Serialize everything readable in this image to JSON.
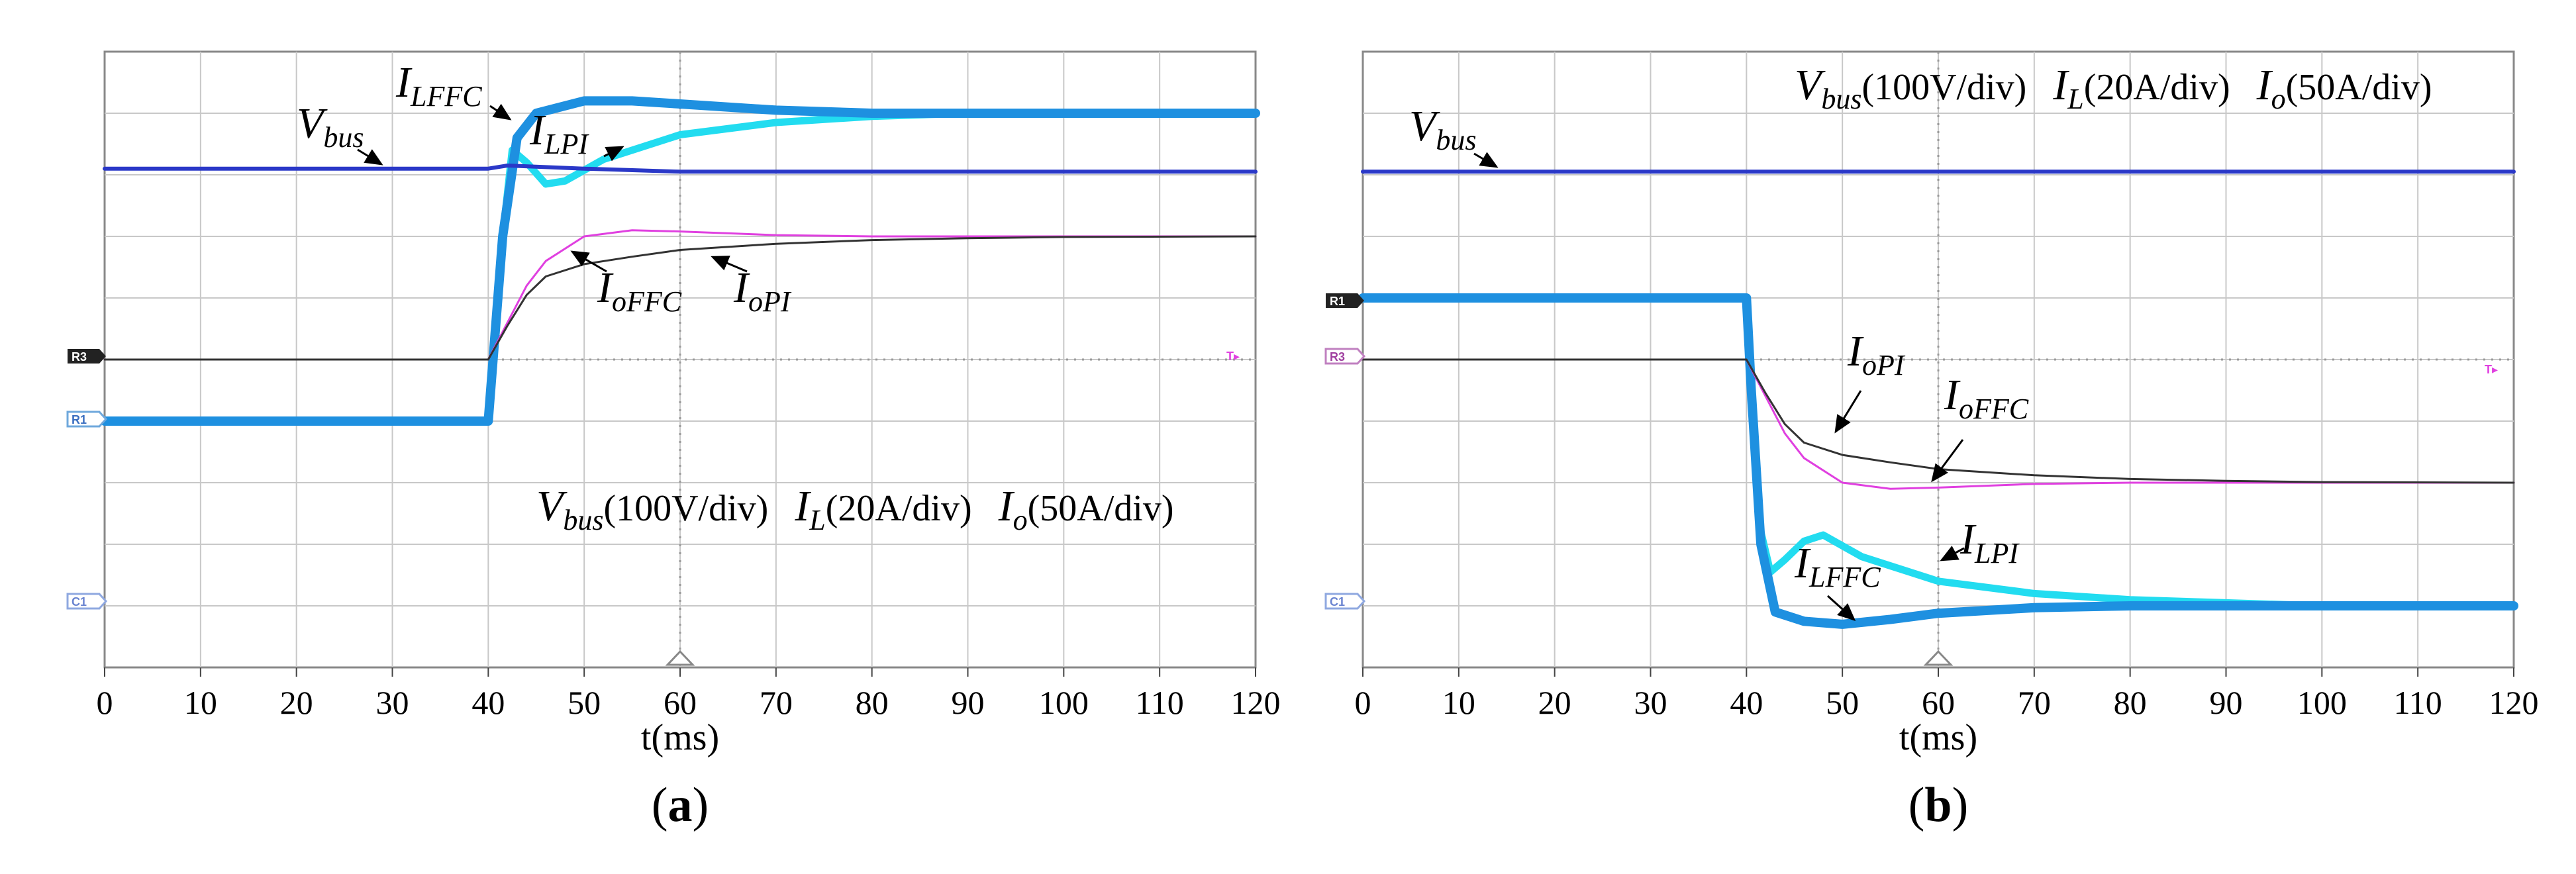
{
  "colors": {
    "vbus": "#2a38c8",
    "il_ffc": "#1e90e0",
    "il_pi": "#22dcf0",
    "io_ffc": "#e040e0",
    "io_pi": "#333333",
    "grid": "#c8c8c8",
    "frame": "#888888"
  },
  "panels": [
    {
      "label_open": "(",
      "label": "a",
      "label_close": ")",
      "xlabel": "t(ms)",
      "ticks": [
        "0",
        "10",
        "20",
        "30",
        "40",
        "50",
        "60",
        "70",
        "80",
        "90",
        "100",
        "110",
        "120"
      ],
      "legend": {
        "v": "V",
        "v_sub": "bus",
        "v_scale": "(100V/div)",
        "i": "I",
        "i_sub": "L",
        "i_scale": "(20A/div)",
        "o": "I",
        "o_sub": "o",
        "o_scale": "(50A/div)"
      },
      "annotations": {
        "vbus": {
          "main": "V",
          "sub": "bus"
        },
        "il_ffc": {
          "main": "I",
          "sub": "LFFC"
        },
        "il_pi": {
          "main": "I",
          "sub": "LPI"
        },
        "io_ffc": {
          "main": "I",
          "sub": "oFFC"
        },
        "io_pi": {
          "main": "I",
          "sub": "oPI"
        }
      },
      "markers": {
        "r3": "R3",
        "r1": "R1",
        "c1": "C1",
        "trig": "T▸"
      }
    },
    {
      "label_open": "(",
      "label": "b",
      "label_close": ")",
      "xlabel": "t(ms)",
      "ticks": [
        "0",
        "10",
        "20",
        "30",
        "40",
        "50",
        "60",
        "70",
        "80",
        "90",
        "100",
        "110",
        "120"
      ],
      "legend": {
        "v": "V",
        "v_sub": "bus",
        "v_scale": "(100V/div)",
        "i": "I",
        "i_sub": "L",
        "i_scale": "(20A/div)",
        "o": "I",
        "o_sub": "o",
        "o_scale": "(50A/div)"
      },
      "annotations": {
        "vbus": {
          "main": "V",
          "sub": "bus"
        },
        "il_ffc": {
          "main": "I",
          "sub": "LFFC"
        },
        "il_pi": {
          "main": "I",
          "sub": "LPI"
        },
        "io_ffc": {
          "main": "I",
          "sub": "oFFC"
        },
        "io_pi": {
          "main": "I",
          "sub": "oPI"
        }
      },
      "markers": {
        "r1": "R1",
        "r3": "R3",
        "c1": "C1",
        "trig": "T▸"
      }
    }
  ],
  "chart_data": [
    {
      "type": "line",
      "title": "(a)",
      "xlabel": "t(ms)",
      "xlim": [
        0,
        120
      ],
      "ylim": [
        0,
        10
      ],
      "grid": true,
      "y_units": "screen divisions (bottom = 0)",
      "series": [
        {
          "name": "Vbus",
          "x": [
            0,
            40,
            42,
            50,
            60,
            120
          ],
          "y": [
            8.1,
            8.1,
            8.15,
            8.1,
            8.05,
            8.05
          ]
        },
        {
          "name": "ILFFC",
          "x": [
            0,
            40,
            41.5,
            43,
            45,
            50,
            55,
            60,
            70,
            80,
            90,
            100,
            120
          ],
          "y": [
            4.0,
            4.0,
            7.0,
            8.6,
            9.0,
            9.2,
            9.2,
            9.15,
            9.05,
            9.0,
            9.0,
            9.0,
            9.0
          ]
        },
        {
          "name": "ILPI",
          "x": [
            0,
            40,
            41.5,
            42.5,
            44,
            46,
            48,
            52,
            60,
            70,
            80,
            90,
            100,
            120
          ],
          "y": [
            4.0,
            4.0,
            7.0,
            8.4,
            8.2,
            7.85,
            7.9,
            8.25,
            8.65,
            8.85,
            8.95,
            9.0,
            9.0,
            9.0
          ]
        },
        {
          "name": "IoFFC",
          "x": [
            0,
            40,
            42,
            44,
            46,
            50,
            55,
            60,
            70,
            80,
            120
          ],
          "y": [
            5.0,
            5.0,
            5.6,
            6.2,
            6.6,
            7.0,
            7.1,
            7.08,
            7.02,
            7.0,
            7.0
          ]
        },
        {
          "name": "IoPI",
          "x": [
            0,
            40,
            42,
            44,
            46,
            50,
            55,
            60,
            70,
            80,
            90,
            100,
            120
          ],
          "y": [
            5.0,
            5.0,
            5.55,
            6.05,
            6.35,
            6.55,
            6.67,
            6.78,
            6.88,
            6.94,
            6.97,
            6.99,
            7.0
          ]
        }
      ]
    },
    {
      "type": "line",
      "title": "(b)",
      "xlabel": "t(ms)",
      "xlim": [
        0,
        120
      ],
      "ylim": [
        0,
        10
      ],
      "grid": true,
      "y_units": "screen divisions (bottom = 0)",
      "series": [
        {
          "name": "Vbus",
          "x": [
            0,
            40,
            120
          ],
          "y": [
            8.05,
            8.05,
            8.05
          ]
        },
        {
          "name": "ILFFC",
          "x": [
            0,
            40,
            40.5,
            41.5,
            43,
            46,
            50,
            55,
            60,
            70,
            80,
            90,
            100,
            120
          ],
          "y": [
            6.0,
            6.0,
            4.5,
            2.0,
            0.9,
            0.75,
            0.7,
            0.78,
            0.88,
            0.97,
            1.0,
            1.0,
            1.0,
            1.0
          ]
        },
        {
          "name": "ILPI",
          "x": [
            0,
            40,
            40.5,
            41.5,
            42.5,
            44,
            46,
            48,
            52,
            60,
            70,
            80,
            90,
            100,
            120
          ],
          "y": [
            6.0,
            6.0,
            4.5,
            2.2,
            1.55,
            1.75,
            2.05,
            2.15,
            1.8,
            1.4,
            1.2,
            1.1,
            1.05,
            1.0,
            1.0
          ]
        },
        {
          "name": "IoFFC",
          "x": [
            0,
            40,
            42,
            44,
            46,
            50,
            55,
            60,
            70,
            80,
            120
          ],
          "y": [
            5.0,
            5.0,
            4.4,
            3.8,
            3.4,
            3.0,
            2.9,
            2.92,
            2.98,
            3.0,
            3.0
          ]
        },
        {
          "name": "IoPI",
          "x": [
            0,
            40,
            42,
            44,
            46,
            50,
            55,
            60,
            70,
            80,
            90,
            100,
            120
          ],
          "y": [
            5.0,
            5.0,
            4.45,
            3.95,
            3.65,
            3.45,
            3.33,
            3.22,
            3.12,
            3.06,
            3.03,
            3.01,
            3.0
          ]
        }
      ]
    }
  ]
}
